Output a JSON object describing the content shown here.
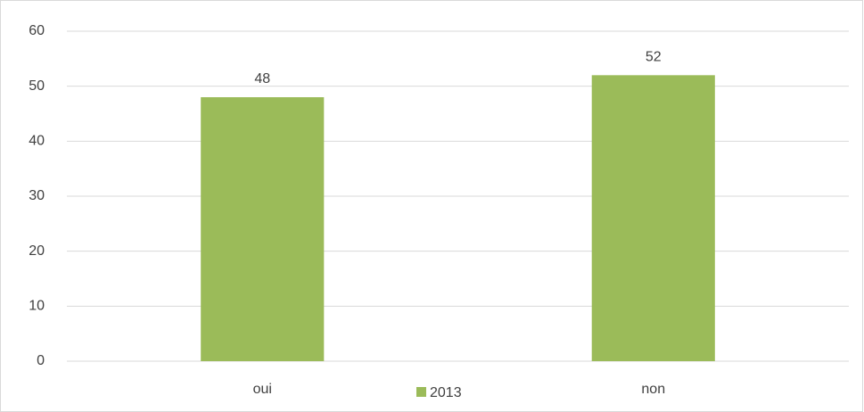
{
  "chart_data": {
    "type": "bar",
    "categories": [
      "oui",
      "non"
    ],
    "series": [
      {
        "name": "2013",
        "color": "#9bbb59",
        "values": [
          48,
          52
        ]
      }
    ],
    "ylim": [
      0,
      60
    ],
    "yticks": [
      0,
      10,
      20,
      30,
      40,
      50,
      60
    ],
    "grid": true,
    "legend": "bottom",
    "data_labels": true
  }
}
